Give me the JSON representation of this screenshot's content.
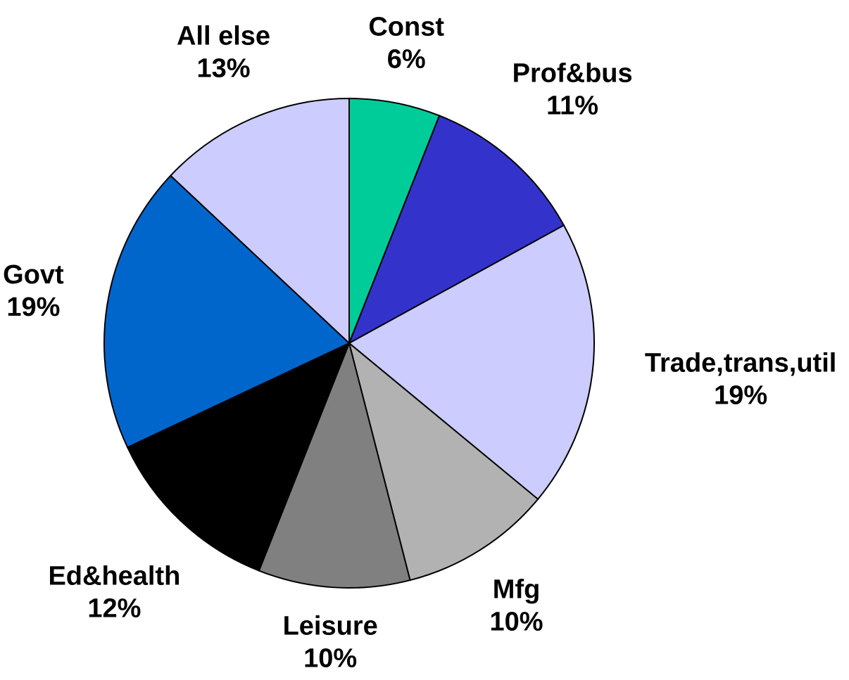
{
  "chart_data": {
    "type": "pie",
    "categories": [
      "Const",
      "Prof&bus",
      "Trade,trans,util",
      "Mfg",
      "Leisure",
      "Ed&health",
      "Govt",
      "All else"
    ],
    "values": [
      6,
      11,
      19,
      10,
      10,
      12,
      19,
      13
    ],
    "value_labels": [
      "6%",
      "11%",
      "19%",
      "10%",
      "10%",
      "12%",
      "19%",
      "13%"
    ],
    "colors": [
      "#00cc99",
      "#3333cc",
      "#ccccff",
      "#b2b2b2",
      "#808080",
      "#000000",
      "#0066cc",
      "#ccccff"
    ]
  }
}
